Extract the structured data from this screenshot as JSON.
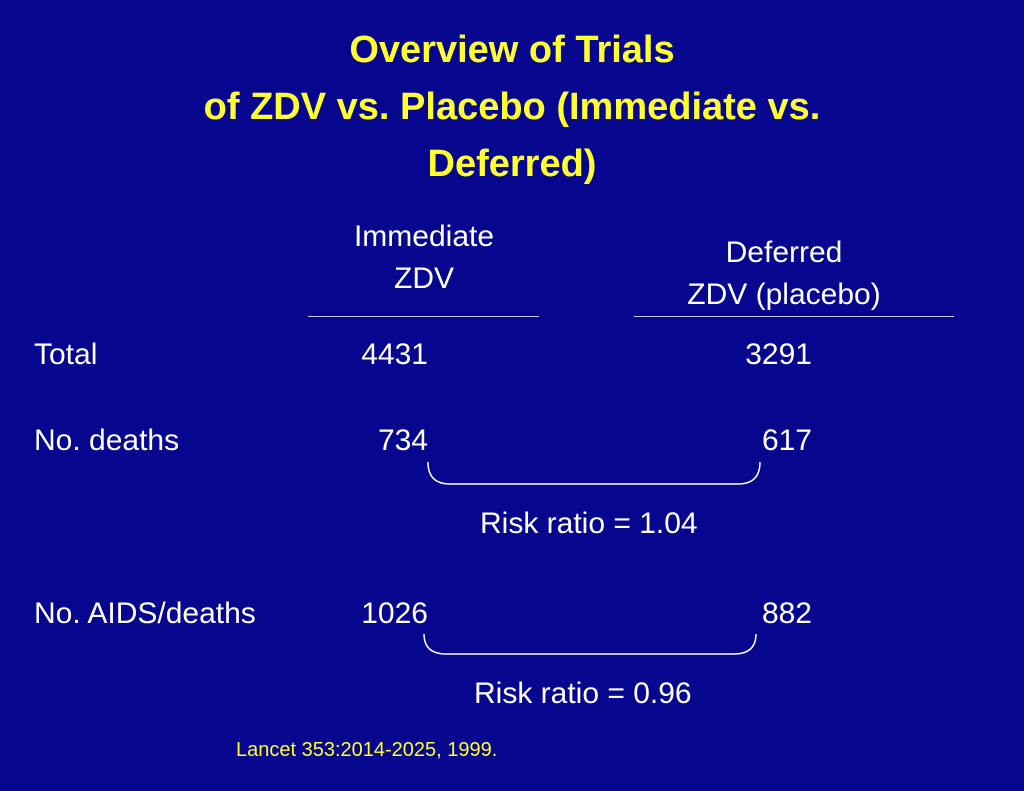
{
  "title": {
    "line1": "Overview of Trials",
    "line2": "of ZDV vs. Placebo (Immediate vs.",
    "line3": "Deferred)"
  },
  "columns": {
    "immediate": {
      "line1": "Immediate",
      "line2": "ZDV"
    },
    "deferred": {
      "line1": "Deferred",
      "line2": "ZDV (placebo)"
    }
  },
  "rows": [
    {
      "label": "Total",
      "immediate": "4431",
      "deferred": "3291"
    },
    {
      "label": "No. deaths",
      "immediate": "734",
      "deferred": "617"
    },
    {
      "label": "No. AIDS/deaths",
      "immediate": "1026",
      "deferred": "882"
    }
  ],
  "risk_ratios": [
    "Risk ratio = 1.04",
    "Risk ratio = 0.96"
  ],
  "citation": "Lancet 353:2014-2025, 1999.",
  "colors": {
    "background": "#06068f",
    "title": "#ffff2e",
    "text": "#ffffff",
    "citation": "#ffff2e"
  }
}
